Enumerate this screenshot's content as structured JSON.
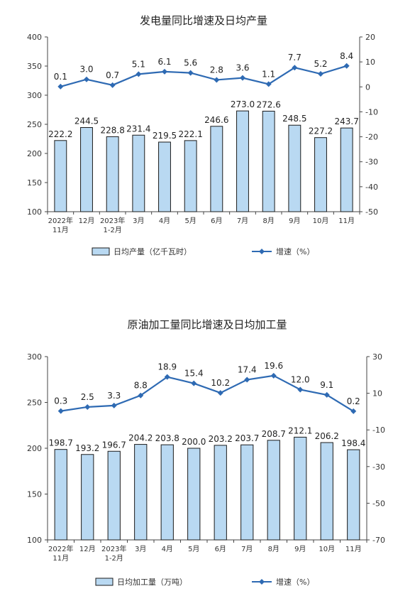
{
  "colors": {
    "bar_fill": "#b9d9f2",
    "bar_stroke": "#1b1b1b",
    "line": "#2e6ab3",
    "marker": "#2e6ab3"
  },
  "chart_data": [
    {
      "type": "bar",
      "title": "发电量同比增速及日均产量",
      "categories": [
        "2022年 11月",
        "12月",
        "2023年 1-2月",
        "3月",
        "4月",
        "5月",
        "6月",
        "7月",
        "8月",
        "9月",
        "10月",
        "11月"
      ],
      "category_lines": [
        [
          "2022年",
          "11月"
        ],
        [
          "12月"
        ],
        [
          "2023年",
          "1-2月"
        ],
        [
          "3月"
        ],
        [
          "4月"
        ],
        [
          "5月"
        ],
        [
          "6月"
        ],
        [
          "7月"
        ],
        [
          "8月"
        ],
        [
          "9月"
        ],
        [
          "10月"
        ],
        [
          "11月"
        ]
      ],
      "ylim": [
        100,
        400
      ],
      "yticks": [
        100,
        150,
        200,
        250,
        300,
        350,
        400
      ],
      "y2lim": [
        -50,
        20
      ],
      "y2ticks": [
        -50,
        -40,
        -30,
        -20,
        -10,
        0,
        10,
        20
      ],
      "series": [
        {
          "name": "日均产量（亿千瓦时）",
          "type": "bar",
          "axis": "left",
          "values": [
            222.2,
            244.5,
            228.8,
            231.4,
            219.5,
            222.1,
            246.6,
            273.0,
            272.6,
            248.5,
            227.2,
            243.7
          ],
          "labels": [
            "222.2",
            "244.5",
            "228.8",
            "231.4",
            "219.5",
            "222.1",
            "246.6",
            "273.0",
            "272.6",
            "248.5",
            "227.2",
            "243.7"
          ]
        },
        {
          "name": "增速（%）",
          "type": "line",
          "axis": "right",
          "values": [
            0.1,
            3.0,
            0.7,
            5.1,
            6.1,
            5.6,
            2.8,
            3.6,
            1.1,
            7.7,
            5.2,
            8.4
          ],
          "labels": [
            "0.1",
            "3.0",
            "0.7",
            "5.1",
            "6.1",
            "5.6",
            "2.8",
            "3.6",
            "1.1",
            "7.7",
            "5.2",
            "8.4"
          ]
        }
      ],
      "legend": "bottom"
    },
    {
      "type": "bar",
      "title": "原油加工量同比增速及日均加工量",
      "categories": [
        "2022年 11月",
        "12月",
        "2023年 1-2月",
        "3月",
        "4月",
        "5月",
        "6月",
        "7月",
        "8月",
        "9月",
        "10月",
        "11月"
      ],
      "category_lines": [
        [
          "2022年",
          "11月"
        ],
        [
          "12月"
        ],
        [
          "2023年",
          "1-2月"
        ],
        [
          "3月"
        ],
        [
          "4月"
        ],
        [
          "5月"
        ],
        [
          "6月"
        ],
        [
          "7月"
        ],
        [
          "8月"
        ],
        [
          "9月"
        ],
        [
          "10月"
        ],
        [
          "11月"
        ]
      ],
      "ylim": [
        100,
        300
      ],
      "yticks": [
        100,
        150,
        200,
        250,
        300
      ],
      "y2lim": [
        -70,
        30
      ],
      "y2ticks": [
        -70,
        -50,
        -30,
        -10,
        10,
        30
      ],
      "series": [
        {
          "name": "日均加工量（万吨）",
          "type": "bar",
          "axis": "left",
          "values": [
            198.7,
            193.2,
            196.7,
            204.2,
            203.8,
            200.0,
            203.2,
            203.7,
            208.7,
            212.1,
            206.2,
            198.4
          ],
          "labels": [
            "198.7",
            "193.2",
            "196.7",
            "204.2",
            "203.8",
            "200.0",
            "203.2",
            "203.7",
            "208.7",
            "212.1",
            "206.2",
            "198.4"
          ]
        },
        {
          "name": "增速（%）",
          "type": "line",
          "axis": "right",
          "values": [
            0.3,
            2.5,
            3.3,
            8.8,
            18.9,
            15.4,
            10.2,
            17.4,
            19.6,
            12.0,
            9.1,
            0.2
          ],
          "labels": [
            "0.3",
            "2.5",
            "3.3",
            "8.8",
            "18.9",
            "15.4",
            "10.2",
            "17.4",
            "19.6",
            "12.0",
            "9.1",
            "0.2"
          ]
        }
      ],
      "legend": "bottom"
    }
  ]
}
